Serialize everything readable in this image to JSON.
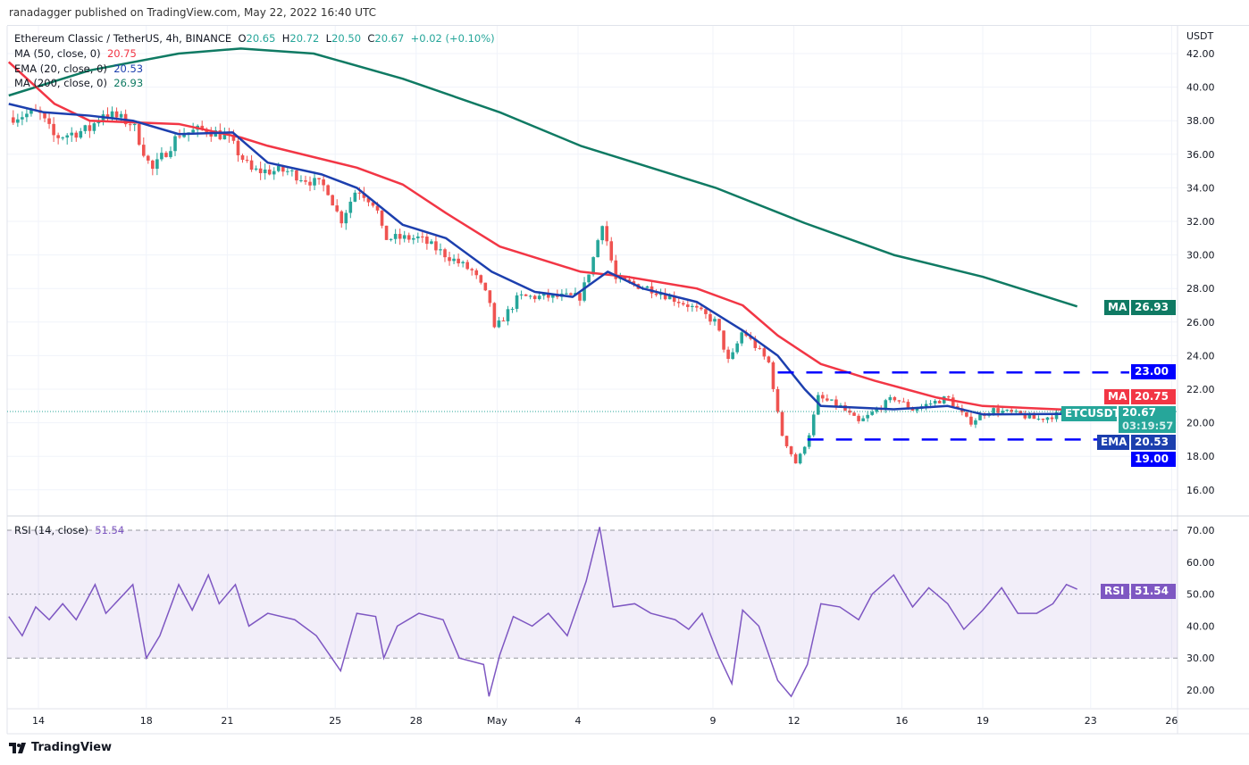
{
  "published": "ranadagger published on TradingView.com, May 22, 2022 16:40 UTC",
  "legend": {
    "symbol": "Ethereum Classic / TetherUS, 4h, BINANCE",
    "o_label": "O",
    "o": "20.65",
    "h_label": "H",
    "h": "20.72",
    "l_label": "L",
    "l": "20.50",
    "c_label": "C",
    "c": "20.67",
    "change": "+0.02 (+0.10%)",
    "ma50": "MA (50, close, 0)",
    "ma50_val": "20.75",
    "ema20": "EMA (20, close, 0)",
    "ema20_val": "20.53",
    "ma200": "MA (200, close, 0)",
    "ma200_val": "26.93",
    "rsi": "RSI (14, close)",
    "rsi_val": "51.54"
  },
  "axis_currency": "USDT",
  "tags": {
    "ma200_label": "MA",
    "ma200_val": "26.93",
    "level_high": "23.00",
    "ma50_label": "MA",
    "ma50_val": "20.75",
    "symbol": "ETCUSDT",
    "price": "20.67",
    "countdown": "03:19:57",
    "ema_label": "EMA",
    "ema_val": "20.53",
    "level_low": "19.00",
    "rsi_label": "RSI",
    "rsi_val": "51.54"
  },
  "footer": "TradingView",
  "colors": {
    "up": "#26a69a",
    "down": "#ef5350",
    "ma50": "#f23645",
    "ema20": "#1c3fae",
    "ma200": "#0f7a63",
    "rsi": "#7e57c2",
    "level": "#0000ff"
  },
  "chart_data": {
    "type": "candlestick",
    "title": "Ethereum Classic / TetherUS, 4h, BINANCE",
    "x_unit": "days since Apr 14, 2022",
    "x_ticks": [
      {
        "t": 0,
        "label": "14"
      },
      {
        "t": 4,
        "label": "18"
      },
      {
        "t": 7,
        "label": "21"
      },
      {
        "t": 11,
        "label": "25"
      },
      {
        "t": 14,
        "label": "28"
      },
      {
        "t": 17,
        "label": "May"
      },
      {
        "t": 20,
        "label": "4"
      },
      {
        "t": 25,
        "label": "9"
      },
      {
        "t": 28,
        "label": "12"
      },
      {
        "t": 32,
        "label": "16"
      },
      {
        "t": 35,
        "label": "19"
      },
      {
        "t": 39,
        "label": "23"
      },
      {
        "t": 42,
        "label": "26"
      }
    ],
    "price_ticks": [
      "42.00",
      "40.00",
      "38.00",
      "36.00",
      "34.00",
      "32.00",
      "30.00",
      "28.00",
      "26.00",
      "24.00",
      "22.00",
      "20.00",
      "18.00",
      "16.00"
    ],
    "ylim": [
      16,
      42
    ],
    "price": [
      [
        -1.1,
        38.2
      ],
      [
        0,
        38.5
      ],
      [
        0.6,
        37.0
      ],
      [
        1.9,
        37.5
      ],
      [
        2.4,
        38.5
      ],
      [
        3.5,
        37.8
      ],
      [
        4.2,
        35.0
      ],
      [
        5.2,
        37.2
      ],
      [
        6.2,
        37.5
      ],
      [
        7,
        37.0
      ],
      [
        7.9,
        35.0
      ],
      [
        9.2,
        35.0
      ],
      [
        10.7,
        34.0
      ],
      [
        11.2,
        32.0
      ],
      [
        11.8,
        34.0
      ],
      [
        12.5,
        33.0
      ],
      [
        12.8,
        31.0
      ],
      [
        14.1,
        31.0
      ],
      [
        15.1,
        30.0
      ],
      [
        16.1,
        29.0
      ],
      [
        16.8,
        27.0
      ],
      [
        16.9,
        25.5
      ],
      [
        17.8,
        27.5
      ],
      [
        19.4,
        27.5
      ],
      [
        20.1,
        27.5
      ],
      [
        20.6,
        30.0
      ],
      [
        20.9,
        32.0
      ],
      [
        21.4,
        28.5
      ],
      [
        22.7,
        28.0
      ],
      [
        24.1,
        27.0
      ],
      [
        25.1,
        26.0
      ],
      [
        25.6,
        23.5
      ],
      [
        26.1,
        25.5
      ],
      [
        27.1,
        23.5
      ],
      [
        27.5,
        19.5
      ],
      [
        28.1,
        17.5
      ],
      [
        28.6,
        19.5
      ],
      [
        28.9,
        21.5
      ],
      [
        29.7,
        21.0
      ],
      [
        30.4,
        20.0
      ],
      [
        31.7,
        21.5
      ],
      [
        32.4,
        20.8
      ],
      [
        33.7,
        21.5
      ],
      [
        34.5,
        20.0
      ],
      [
        35.3,
        20.8
      ],
      [
        36.3,
        20.5
      ],
      [
        37,
        20.2
      ],
      [
        38.3,
        20.67
      ]
    ],
    "ma200": [
      [
        -1.1,
        39.5
      ],
      [
        1.9,
        41.0
      ],
      [
        5.2,
        42.0
      ],
      [
        7.5,
        42.3
      ],
      [
        10.2,
        42.0
      ],
      [
        13.5,
        40.5
      ],
      [
        17.1,
        38.5
      ],
      [
        20.1,
        36.5
      ],
      [
        25.1,
        34.0
      ],
      [
        28.4,
        31.9
      ],
      [
        31.7,
        30.0
      ],
      [
        35.0,
        28.7
      ],
      [
        38.5,
        26.93
      ]
    ],
    "ma50": [
      [
        -1.1,
        41.5
      ],
      [
        0.6,
        39.0
      ],
      [
        1.9,
        38.0
      ],
      [
        5.2,
        37.8
      ],
      [
        7.5,
        37.0
      ],
      [
        8.5,
        36.5
      ],
      [
        11.8,
        35.2
      ],
      [
        13.5,
        34.2
      ],
      [
        15.1,
        32.5
      ],
      [
        17.1,
        30.5
      ],
      [
        20.1,
        29.0
      ],
      [
        21.8,
        28.7
      ],
      [
        24.4,
        28.0
      ],
      [
        26.1,
        27.0
      ],
      [
        27.4,
        25.2
      ],
      [
        29.0,
        23.5
      ],
      [
        31.0,
        22.5
      ],
      [
        33.3,
        21.5
      ],
      [
        35.0,
        21.0
      ],
      [
        38.5,
        20.75
      ]
    ],
    "ema20": [
      [
        -1.1,
        39.0
      ],
      [
        0.2,
        38.5
      ],
      [
        1.9,
        38.3
      ],
      [
        3.5,
        38.0
      ],
      [
        5.2,
        37.2
      ],
      [
        7.2,
        37.3
      ],
      [
        8.5,
        35.5
      ],
      [
        10.5,
        34.8
      ],
      [
        11.8,
        34.0
      ],
      [
        13.5,
        31.8
      ],
      [
        15.1,
        31.0
      ],
      [
        16.8,
        29.0
      ],
      [
        18.4,
        27.8
      ],
      [
        19.8,
        27.5
      ],
      [
        21.1,
        29.0
      ],
      [
        22.4,
        28.0
      ],
      [
        24.4,
        27.2
      ],
      [
        26.1,
        25.5
      ],
      [
        27.4,
        24.0
      ],
      [
        28.4,
        22.0
      ],
      [
        29.0,
        21.0
      ],
      [
        31.7,
        20.8
      ],
      [
        33.7,
        21.0
      ],
      [
        35.0,
        20.5
      ],
      [
        38.5,
        20.53
      ]
    ],
    "levels": [
      {
        "value": 23,
        "from": 27.4
      },
      {
        "value": 19,
        "from": 28.5
      }
    ],
    "rsi_ticks": [
      "70.00",
      "60.00",
      "50.00",
      "40.00",
      "30.00",
      "20.00"
    ],
    "rsi_band": [
      30,
      70
    ],
    "rsi": [
      [
        -1.1,
        43
      ],
      [
        -0.6,
        37
      ],
      [
        -0.1,
        46
      ],
      [
        0.4,
        42
      ],
      [
        0.9,
        47
      ],
      [
        1.4,
        42
      ],
      [
        2.1,
        53
      ],
      [
        2.5,
        44
      ],
      [
        3.5,
        53
      ],
      [
        4.0,
        30
      ],
      [
        4.5,
        37
      ],
      [
        5.2,
        53
      ],
      [
        5.7,
        45
      ],
      [
        6.3,
        56
      ],
      [
        6.7,
        47
      ],
      [
        7.3,
        53
      ],
      [
        7.8,
        40
      ],
      [
        8.5,
        44
      ],
      [
        9.5,
        42
      ],
      [
        10.3,
        37
      ],
      [
        11.2,
        26
      ],
      [
        11.8,
        44
      ],
      [
        12.5,
        43
      ],
      [
        12.8,
        30
      ],
      [
        13.3,
        40
      ],
      [
        14.1,
        44
      ],
      [
        15.0,
        42
      ],
      [
        15.6,
        30
      ],
      [
        16.5,
        28
      ],
      [
        16.7,
        18
      ],
      [
        17.1,
        31
      ],
      [
        17.6,
        43
      ],
      [
        18.3,
        40
      ],
      [
        18.9,
        44
      ],
      [
        19.6,
        37
      ],
      [
        20.3,
        54
      ],
      [
        20.8,
        71
      ],
      [
        21.3,
        46
      ],
      [
        22.1,
        47
      ],
      [
        22.7,
        44
      ],
      [
        23.6,
        42
      ],
      [
        24.1,
        39
      ],
      [
        24.6,
        44
      ],
      [
        25.2,
        31
      ],
      [
        25.7,
        22
      ],
      [
        26.1,
        45
      ],
      [
        26.7,
        40
      ],
      [
        27.4,
        23
      ],
      [
        27.9,
        18
      ],
      [
        28.5,
        28
      ],
      [
        29.0,
        47
      ],
      [
        29.7,
        46
      ],
      [
        30.4,
        42
      ],
      [
        30.9,
        50
      ],
      [
        31.7,
        56
      ],
      [
        32.4,
        46
      ],
      [
        33.0,
        52
      ],
      [
        33.7,
        47
      ],
      [
        34.3,
        39
      ],
      [
        35.0,
        45
      ],
      [
        35.7,
        52
      ],
      [
        36.3,
        44
      ],
      [
        37.0,
        44
      ],
      [
        37.6,
        47
      ],
      [
        38.1,
        53
      ],
      [
        38.5,
        51.54
      ]
    ]
  }
}
